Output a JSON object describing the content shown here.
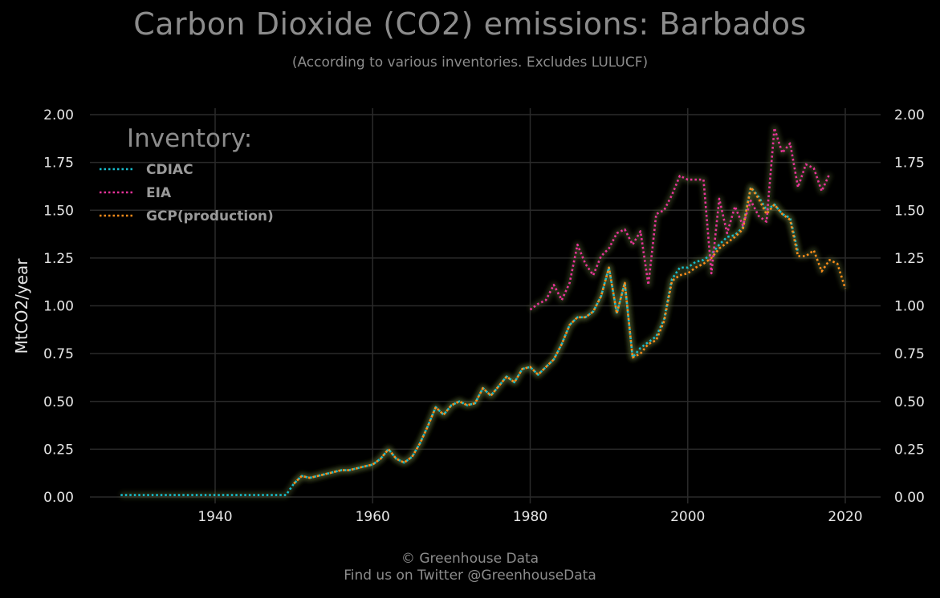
{
  "chart_data": {
    "type": "line",
    "title": "Carbon Dioxide (CO2) emissions: Barbados",
    "subtitle": "(According to various inventories. Excludes LULUCF)",
    "ylabel": "MtCO2/year",
    "xlabel": "",
    "xlim": [
      1924,
      2024
    ],
    "ylim": [
      0,
      2.0
    ],
    "x_ticks": [
      1940,
      1960,
      1980,
      2000,
      2020
    ],
    "x_tick_labels": [
      "1940",
      "1960",
      "1980",
      "2000",
      "2020"
    ],
    "y_ticks": [
      0,
      0.25,
      0.5,
      0.75,
      1.0,
      1.25,
      1.5,
      1.75,
      2.0
    ],
    "y_tick_labels": [
      "0.00",
      "0.25",
      "0.50",
      "0.75",
      "1.00",
      "1.25",
      "1.50",
      "1.75",
      "2.00"
    ],
    "grid": true,
    "legend": {
      "title": "Inventory:",
      "position": "top-left"
    },
    "series": [
      {
        "name": "CDIAC",
        "color": "#17becf",
        "x": [
          1928,
          1929,
          1930,
          1931,
          1932,
          1933,
          1934,
          1935,
          1936,
          1937,
          1938,
          1939,
          1940,
          1941,
          1942,
          1943,
          1944,
          1945,
          1946,
          1947,
          1948,
          1949,
          1950,
          1951,
          1952,
          1953,
          1954,
          1955,
          1956,
          1957,
          1958,
          1959,
          1960,
          1961,
          1962,
          1963,
          1964,
          1965,
          1966,
          1967,
          1968,
          1969,
          1970,
          1971,
          1972,
          1973,
          1974,
          1975,
          1976,
          1977,
          1978,
          1979,
          1980,
          1981,
          1982,
          1983,
          1984,
          1985,
          1986,
          1987,
          1988,
          1989,
          1990,
          1991,
          1992,
          1993,
          1994,
          1995,
          1996,
          1997,
          1998,
          1999,
          2000,
          2001,
          2002,
          2003,
          2004,
          2005,
          2006,
          2007,
          2008,
          2009,
          2010,
          2011,
          2012,
          2013,
          2014
        ],
        "values": [
          0.01,
          0.01,
          0.01,
          0.01,
          0.01,
          0.01,
          0.01,
          0.01,
          0.01,
          0.01,
          0.01,
          0.01,
          0.01,
          0.01,
          0.01,
          0.01,
          0.01,
          0.01,
          0.01,
          0.01,
          0.01,
          0.01,
          0.07,
          0.11,
          0.1,
          0.11,
          0.12,
          0.13,
          0.14,
          0.14,
          0.15,
          0.16,
          0.17,
          0.2,
          0.25,
          0.2,
          0.18,
          0.21,
          0.28,
          0.37,
          0.47,
          0.43,
          0.48,
          0.5,
          0.48,
          0.49,
          0.57,
          0.53,
          0.58,
          0.63,
          0.6,
          0.67,
          0.68,
          0.64,
          0.68,
          0.72,
          0.8,
          0.9,
          0.94,
          0.94,
          0.97,
          1.05,
          1.2,
          0.96,
          1.12,
          0.73,
          0.78,
          0.81,
          0.84,
          0.93,
          1.14,
          1.2,
          1.2,
          1.23,
          1.24,
          1.27,
          1.32,
          1.36,
          1.37,
          1.41,
          1.62,
          1.57,
          1.5,
          1.53,
          1.48,
          1.46,
          1.28
        ]
      },
      {
        "name": "EIA",
        "color": "#e8339a",
        "x": [
          1980,
          1981,
          1982,
          1983,
          1984,
          1985,
          1986,
          1987,
          1988,
          1989,
          1990,
          1991,
          1992,
          1993,
          1994,
          1995,
          1996,
          1997,
          1998,
          1999,
          2000,
          2001,
          2002,
          2003,
          2004,
          2005,
          2006,
          2007,
          2008,
          2009,
          2010,
          2011,
          2012,
          2013,
          2014,
          2015,
          2016,
          2017,
          2018
        ],
        "values": [
          0.98,
          1.01,
          1.03,
          1.11,
          1.03,
          1.12,
          1.32,
          1.22,
          1.16,
          1.26,
          1.3,
          1.38,
          1.4,
          1.32,
          1.39,
          1.11,
          1.48,
          1.5,
          1.58,
          1.68,
          1.66,
          1.66,
          1.66,
          1.17,
          1.56,
          1.38,
          1.52,
          1.42,
          1.55,
          1.47,
          1.44,
          1.93,
          1.8,
          1.85,
          1.62,
          1.74,
          1.72,
          1.6,
          1.69
        ]
      },
      {
        "name": "GCP(production)",
        "color": "#ff8c1a",
        "x": [
          1950,
          1951,
          1952,
          1953,
          1954,
          1955,
          1956,
          1957,
          1958,
          1959,
          1960,
          1961,
          1962,
          1963,
          1964,
          1965,
          1966,
          1967,
          1968,
          1969,
          1970,
          1971,
          1972,
          1973,
          1974,
          1975,
          1976,
          1977,
          1978,
          1979,
          1980,
          1981,
          1982,
          1983,
          1984,
          1985,
          1986,
          1987,
          1988,
          1989,
          1990,
          1991,
          1992,
          1993,
          1994,
          1995,
          1996,
          1997,
          1998,
          1999,
          2000,
          2001,
          2002,
          2003,
          2004,
          2005,
          2006,
          2007,
          2008,
          2009,
          2010,
          2011,
          2012,
          2013,
          2014,
          2015,
          2016,
          2017,
          2018,
          2019,
          2020
        ],
        "values": [
          0.07,
          0.11,
          0.1,
          0.11,
          0.12,
          0.13,
          0.14,
          0.14,
          0.15,
          0.16,
          0.17,
          0.2,
          0.25,
          0.2,
          0.18,
          0.21,
          0.28,
          0.37,
          0.47,
          0.43,
          0.48,
          0.5,
          0.48,
          0.49,
          0.57,
          0.53,
          0.58,
          0.63,
          0.6,
          0.67,
          0.68,
          0.64,
          0.68,
          0.72,
          0.8,
          0.9,
          0.94,
          0.94,
          0.97,
          1.05,
          1.2,
          0.96,
          1.12,
          0.73,
          0.75,
          0.8,
          0.82,
          0.92,
          1.13,
          1.16,
          1.17,
          1.2,
          1.22,
          1.25,
          1.3,
          1.33,
          1.36,
          1.4,
          1.62,
          1.56,
          1.48,
          1.53,
          1.48,
          1.45,
          1.26,
          1.26,
          1.29,
          1.18,
          1.24,
          1.22,
          1.09
        ]
      }
    ]
  },
  "footer": {
    "line1": "© Greenhouse Data",
    "line2": "Find us on Twitter @GreenhouseData"
  }
}
